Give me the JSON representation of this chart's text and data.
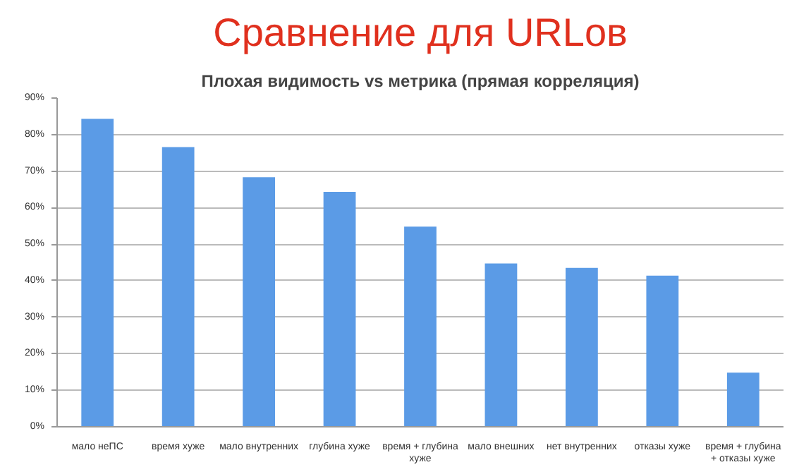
{
  "chart_data": {
    "type": "bar",
    "title": "Сравнение для URLов",
    "subtitle": "Плохая видимость vs метрика (прямая корреляция)",
    "categories": [
      "мало неПС",
      "время хуже",
      "мало внутренних",
      "глубина хуже",
      "время + глубина хуже",
      "мало внешних",
      "нет внутренних",
      "отказы хуже",
      "время + глубина + отказы хуже"
    ],
    "values": [
      84.3,
      76.6,
      68.3,
      64.3,
      54.8,
      44.7,
      43.5,
      41.4,
      14.8
    ],
    "color": "#5b9be6",
    "ylim": [
      0,
      90
    ],
    "yticks": [
      {
        "value": 0,
        "label": "0%"
      },
      {
        "value": 10,
        "label": "10%"
      },
      {
        "value": 20,
        "label": "20%"
      },
      {
        "value": 30,
        "label": "30%"
      },
      {
        "value": 40,
        "label": "40%"
      },
      {
        "value": 50,
        "label": "50%"
      },
      {
        "value": 60,
        "label": "60%"
      },
      {
        "value": 70,
        "label": "70%"
      },
      {
        "value": 80,
        "label": "80%"
      },
      {
        "value": 90,
        "label": "90%"
      }
    ],
    "grid": "y"
  }
}
